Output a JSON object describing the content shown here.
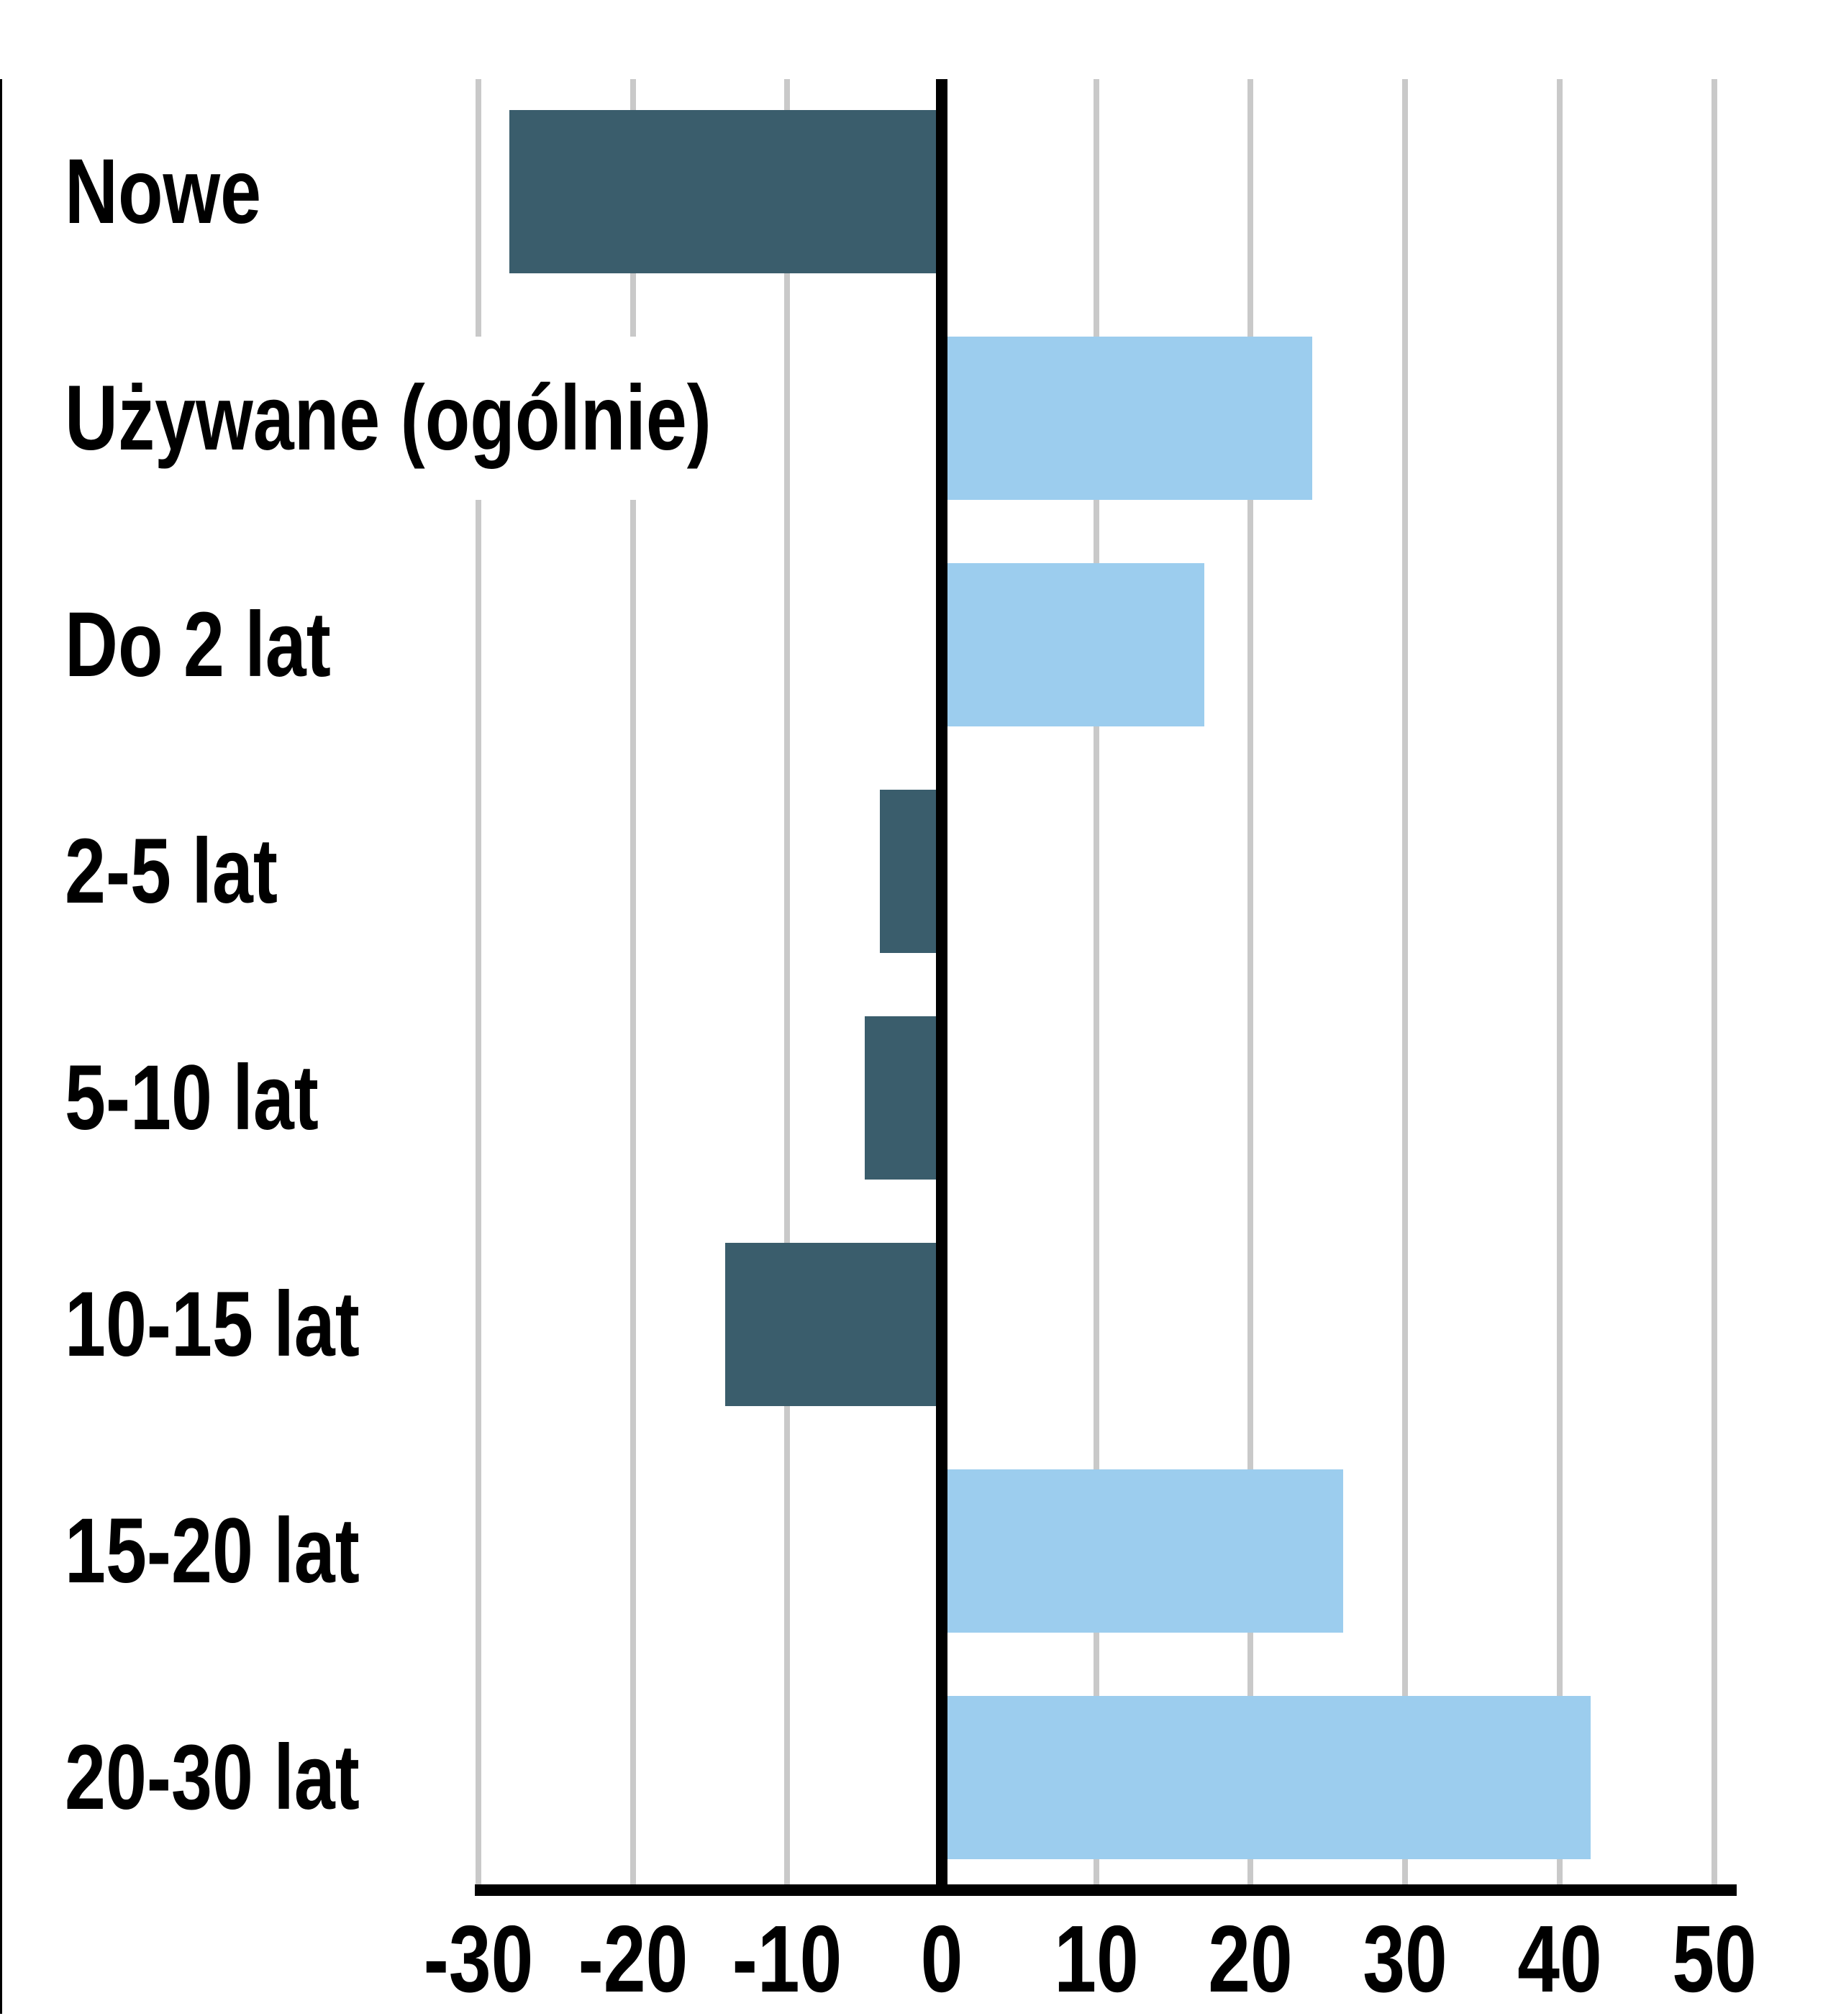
{
  "chart_data": {
    "type": "bar",
    "orientation": "horizontal",
    "title": "",
    "categories": [
      "Nowe",
      "Używane (ogólnie)",
      "Do 2 lat",
      "2-5 lat",
      "5-10 lat",
      "10-15 lat",
      "15-20 lat",
      "20-30 lat"
    ],
    "values": [
      -28,
      24,
      17,
      -4,
      -5,
      -14,
      26,
      42
    ],
    "xlabel": "",
    "ylabel": "",
    "xlim": [
      -30,
      50
    ],
    "xticks": [
      -30,
      -20,
      -10,
      0,
      10,
      20,
      30,
      40,
      50
    ],
    "xtick_labels": [
      "-30",
      "-20",
      "-10",
      "0",
      "10",
      "20",
      "30",
      "40",
      "50"
    ],
    "grid": "vertical",
    "legend": "none",
    "colors": {
      "positive_bar": "#9CCDEE",
      "negative_bar": "#3A5D6C",
      "gridline": "#C9C9C9",
      "zero_line": "#000000",
      "axis_line": "#000000",
      "text": "#000000",
      "background": "#FFFFFF"
    }
  }
}
